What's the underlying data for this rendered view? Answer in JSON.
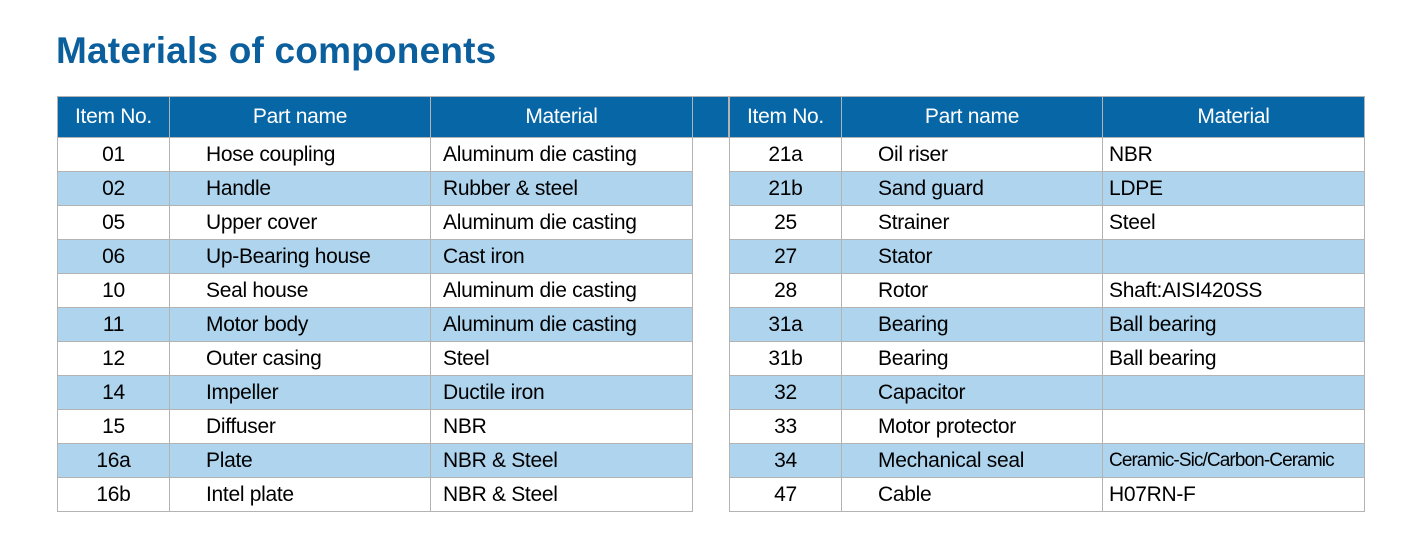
{
  "title": "Materials of components",
  "headers": [
    "Item No.",
    "Part name",
    "Material"
  ],
  "left_table": [
    [
      "01",
      "Hose coupling",
      "Aluminum die casting"
    ],
    [
      "02",
      "Handle",
      "Rubber & steel"
    ],
    [
      "05",
      "Upper cover",
      "Aluminum die casting"
    ],
    [
      "06",
      "Up-Bearing house",
      "Cast iron"
    ],
    [
      "10",
      "Seal house",
      "Aluminum die casting"
    ],
    [
      "11",
      "Motor body",
      "Aluminum die casting"
    ],
    [
      "12",
      "Outer casing",
      "Steel"
    ],
    [
      "14",
      "Impeller",
      "Ductile iron"
    ],
    [
      "15",
      "Diffuser",
      "NBR"
    ],
    [
      "16a",
      "Plate",
      "NBR & Steel"
    ],
    [
      "16b",
      "Intel plate",
      "NBR & Steel"
    ]
  ],
  "right_table": [
    [
      "21a",
      "Oil riser",
      "NBR"
    ],
    [
      "21b",
      "Sand guard",
      "LDPE"
    ],
    [
      "25",
      "Strainer",
      "Steel"
    ],
    [
      "27",
      "Stator",
      ""
    ],
    [
      "28",
      "Rotor",
      "Shaft:AISI420SS"
    ],
    [
      "31a",
      "Bearing",
      "Ball bearing"
    ],
    [
      "31b",
      "Bearing",
      "Ball bearing"
    ],
    [
      "32",
      "Capacitor",
      ""
    ],
    [
      "33",
      "Motor protector",
      ""
    ],
    [
      "34",
      "Mechanical seal",
      "Ceramic-Sic/Carbon-Ceramic"
    ],
    [
      "47",
      "Cable",
      "H07RN-F"
    ]
  ],
  "colors": {
    "title": "#0b5f9c",
    "header_bg": "#0666a6",
    "stripe_bg": "#aed4ee",
    "border": "#b3b3b3"
  }
}
